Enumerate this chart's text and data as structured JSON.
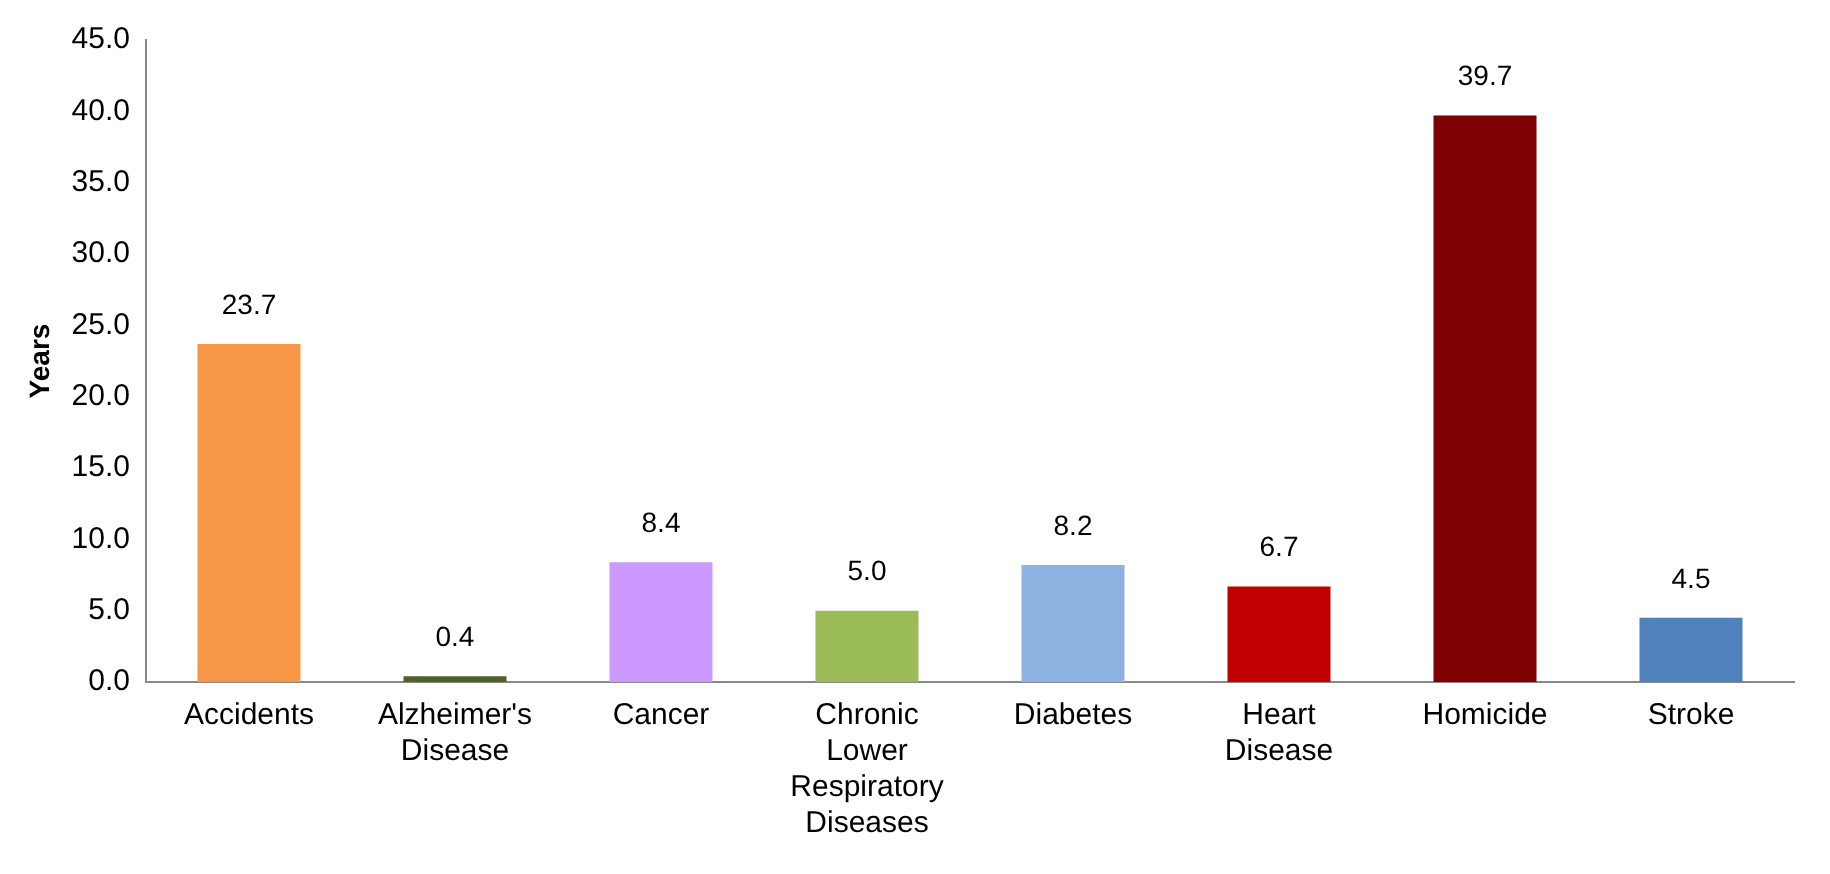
{
  "chart_data": {
    "type": "bar",
    "ylabel": "Years",
    "categories": [
      "Accidents",
      "Alzheimer's Disease",
      "Cancer",
      "Chronic Lower Respiratory Diseases",
      "Diabetes",
      "Heart Disease",
      "Homicide",
      "Stroke"
    ],
    "values": [
      23.7,
      0.4,
      8.4,
      5.0,
      8.2,
      6.7,
      39.7,
      4.5
    ],
    "colors": [
      "#f79646",
      "#4f6228",
      "#cc99ff",
      "#9bbb59",
      "#8db3e2",
      "#c00000",
      "#7f0000",
      "#4f81bd"
    ],
    "value_labels": [
      "23.7",
      "0.4",
      "8.4",
      "5.0",
      "8.2",
      "6.7",
      "39.7",
      "4.5"
    ],
    "ylim": [
      0,
      45
    ],
    "yticks": [
      {
        "value": 0,
        "label": "0.0"
      },
      {
        "value": 5,
        "label": "5.0"
      },
      {
        "value": 10,
        "label": "10.0"
      },
      {
        "value": 15,
        "label": "15.0"
      },
      {
        "value": 20,
        "label": "20.0"
      },
      {
        "value": 25,
        "label": "25.0"
      },
      {
        "value": 30,
        "label": "30.0"
      },
      {
        "value": 35,
        "label": "35.0"
      },
      {
        "value": 40,
        "label": "40.0"
      },
      {
        "value": 45,
        "label": "45.0"
      }
    ],
    "grid": false,
    "legend": false
  }
}
